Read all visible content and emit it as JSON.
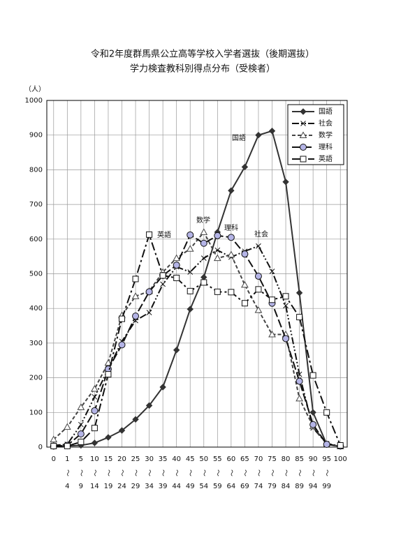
{
  "chart_data": {
    "type": "line",
    "title": [
      "令和2年度群馬県公立高等学校入学者選抜（後期選抜）",
      "学力検査教科別得点分布（受検者）"
    ],
    "y_unit": "（人）",
    "range_sep": "～",
    "categories": [
      {
        "start": "0"
      },
      {
        "start": "1",
        "end": "4"
      },
      {
        "start": "5",
        "end": "9"
      },
      {
        "start": "10",
        "end": "14"
      },
      {
        "start": "15",
        "end": "19"
      },
      {
        "start": "20",
        "end": "24"
      },
      {
        "start": "25",
        "end": "29"
      },
      {
        "start": "30",
        "end": "34"
      },
      {
        "start": "35",
        "end": "39"
      },
      {
        "start": "40",
        "end": "44"
      },
      {
        "start": "45",
        "end": "49"
      },
      {
        "start": "50",
        "end": "54"
      },
      {
        "start": "55",
        "end": "59"
      },
      {
        "start": "60",
        "end": "64"
      },
      {
        "start": "65",
        "end": "69"
      },
      {
        "start": "70",
        "end": "74"
      },
      {
        "start": "75",
        "end": "79"
      },
      {
        "start": "80",
        "end": "84"
      },
      {
        "start": "85",
        "end": "89"
      },
      {
        "start": "90",
        "end": "94"
      },
      {
        "start": "95",
        "end": "99"
      },
      {
        "start": "100"
      }
    ],
    "ylim": [
      0,
      1000
    ],
    "yticks": [
      0,
      100,
      200,
      300,
      400,
      500,
      600,
      700,
      800,
      900,
      1000
    ],
    "grid": true,
    "legend": "top-right",
    "series": [
      {
        "name": "国語",
        "color": "#333333",
        "dash": "none",
        "marker": "diamond",
        "values": [
          3,
          3,
          5,
          12,
          28,
          48,
          80,
          120,
          173,
          280,
          398,
          490,
          620,
          740,
          808,
          900,
          912,
          765,
          445,
          100,
          8,
          2
        ]
      },
      {
        "name": "社会",
        "color": "#111111",
        "dash": "10 3 2 3 2 3",
        "marker": "cross",
        "values": [
          5,
          8,
          65,
          145,
          225,
          305,
          365,
          388,
          470,
          520,
          505,
          545,
          568,
          548,
          565,
          580,
          507,
          408,
          210,
          55,
          10,
          3
        ]
      },
      {
        "name": "数学",
        "color": "#444444",
        "dash": "5 3",
        "marker": "triangle",
        "values": [
          22,
          58,
          115,
          168,
          243,
          380,
          435,
          450,
          505,
          545,
          572,
          620,
          545,
          555,
          468,
          395,
          325,
          325,
          140,
          60,
          8,
          2
        ]
      },
      {
        "name": "理科",
        "color": "#111111",
        "dash": "12 4",
        "marker": "circle",
        "values": [
          3,
          5,
          38,
          105,
          225,
          295,
          378,
          448,
          495,
          525,
          612,
          588,
          610,
          605,
          557,
          493,
          415,
          313,
          190,
          65,
          8,
          3
        ]
      },
      {
        "name": "英語",
        "color": "#111111",
        "dash": "12 4 3 4",
        "marker": "square",
        "values": [
          3,
          3,
          15,
          55,
          210,
          370,
          485,
          613,
          495,
          488,
          450,
          475,
          448,
          447,
          415,
          455,
          425,
          435,
          375,
          207,
          100,
          5
        ]
      }
    ],
    "annotations": [
      "国語",
      "英語",
      "数学",
      "理科",
      "社会"
    ]
  }
}
